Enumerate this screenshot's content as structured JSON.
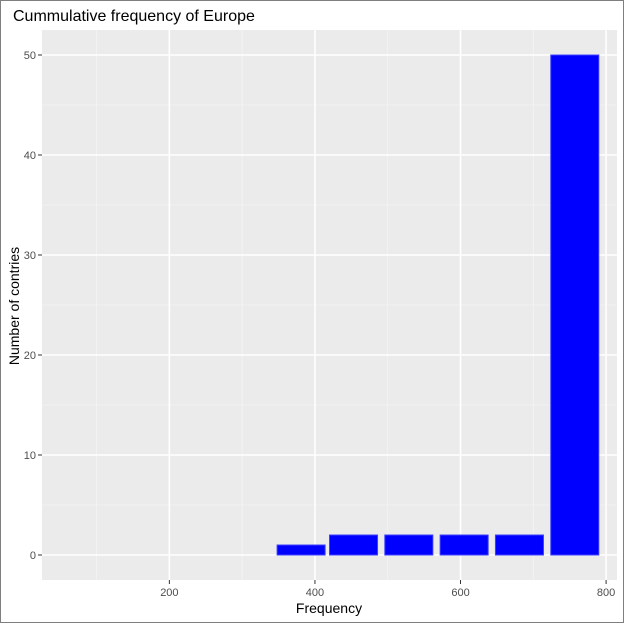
{
  "chart_data": {
    "type": "bar",
    "title": "Cummulative frequency of Europe",
    "xlabel": "Frequency",
    "ylabel": "Number of contries",
    "xlim": [
      25,
      815
    ],
    "ylim": [
      -2.5,
      52.5
    ],
    "xticks": [
      200,
      400,
      600,
      800
    ],
    "yticks": [
      0,
      10,
      20,
      30,
      40,
      50
    ],
    "bin_width": 66,
    "bars": [
      {
        "x": 381,
        "value": 1
      },
      {
        "x": 453,
        "value": 2
      },
      {
        "x": 529,
        "value": 2
      },
      {
        "x": 605,
        "value": 2
      },
      {
        "x": 681,
        "value": 2
      },
      {
        "x": 757,
        "value": 50
      }
    ],
    "bar_color": "#0000ff",
    "background_color": "#ebebeb",
    "grid": true
  }
}
